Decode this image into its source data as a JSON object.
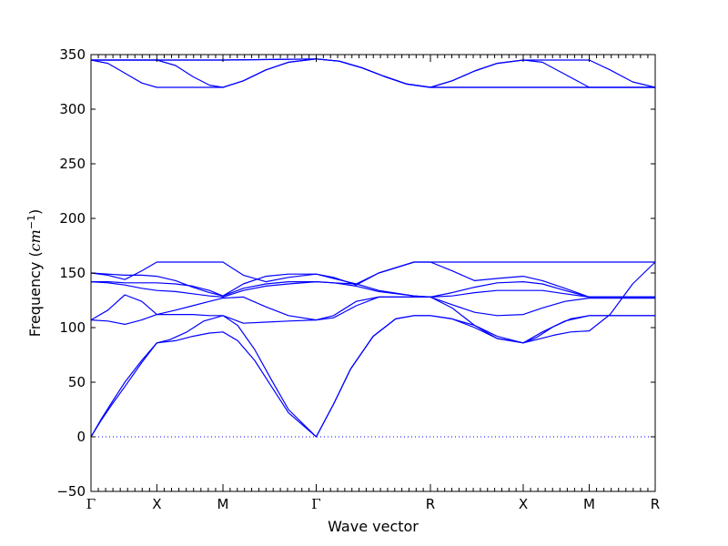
{
  "chart_data": {
    "type": "line",
    "title": "",
    "xlabel": "Wave vector",
    "ylabel_prefix": "Frequency (",
    "ylabel_unit": "cm",
    "ylabel_exp": "−1",
    "ylabel_suffix": ")",
    "ylim": [
      -50,
      350
    ],
    "yticks": [
      -50,
      0,
      50,
      100,
      150,
      200,
      250,
      300,
      350
    ],
    "ytick_labels": [
      "−50",
      "0",
      "50",
      "100",
      "150",
      "200",
      "250",
      "300",
      "350"
    ],
    "xlim": [
      0,
      1
    ],
    "kpoints": [
      {
        "label": "Γ",
        "x": 0.0
      },
      {
        "label": "X",
        "x": 0.1167
      },
      {
        "label": "M",
        "x": 0.2339
      },
      {
        "label": "Γ",
        "x": 0.3992
      },
      {
        "label": "R",
        "x": 0.6016
      },
      {
        "label": "X",
        "x": 0.7661
      },
      {
        "label": "M",
        "x": 0.8831
      },
      {
        "label": "R",
        "x": 1.0
      }
    ],
    "line_color": "#0000ff",
    "zero_line": {
      "y": 0,
      "style": "dotted",
      "color": "#0000ff"
    },
    "grid": false,
    "legend": "none",
    "series": [
      {
        "x": [
          0,
          0.0167,
          0.035,
          0.06,
          0.09,
          0.1167,
          0.14,
          0.17,
          0.2,
          0.2339,
          0.26,
          0.29,
          0.32,
          0.35,
          0.3992,
          0.43,
          0.46,
          0.5,
          0.54,
          0.5726,
          0.6016,
          0.64,
          0.68,
          0.72,
          0.7661,
          0.79,
          0.82,
          0.85,
          0.8831,
          0.92,
          0.96,
          1.0
        ],
        "y": [
          0,
          15,
          30,
          50,
          70,
          86,
          89,
          96,
          106,
          111,
          102,
          80,
          52,
          25,
          0,
          30,
          62,
          92,
          108,
          111,
          111,
          108,
          102,
          92,
          86,
          91,
          101,
          108,
          111,
          111,
          111,
          111
        ]
      },
      {
        "x": [
          0,
          0.0167,
          0.035,
          0.06,
          0.09,
          0.1167,
          0.15,
          0.18,
          0.21,
          0.2339,
          0.26,
          0.29,
          0.32,
          0.35,
          0.3992,
          0.43,
          0.46,
          0.5,
          0.54,
          0.5726,
          0.6016,
          0.64,
          0.68,
          0.72,
          0.7661,
          0.79,
          0.82,
          0.85,
          0.8831,
          0.92,
          0.96,
          1.0
        ],
        "y": [
          0,
          14,
          28,
          46,
          68,
          86,
          88,
          92,
          95,
          96,
          88,
          70,
          46,
          22,
          0,
          30,
          62,
          92,
          108,
          111,
          111,
          108,
          100,
          90,
          86,
          89,
          93,
          96,
          97,
          112,
          140,
          160
        ]
      },
      {
        "x": [
          0,
          0.03,
          0.06,
          0.09,
          0.1167,
          0.15,
          0.18,
          0.21,
          0.2339,
          0.27,
          0.31,
          0.35,
          0.3992,
          0.43,
          0.47,
          0.51,
          0.5726,
          0.6016,
          0.64,
          0.68,
          0.72,
          0.7661,
          0.8,
          0.84,
          0.8831,
          0.93,
          0.97,
          1.0
        ],
        "y": [
          107,
          106,
          103,
          107,
          112,
          112,
          112,
          111,
          111,
          104,
          105,
          106,
          107,
          109,
          120,
          128,
          128,
          128,
          118,
          102,
          90,
          86,
          96,
          106,
          111,
          111,
          111,
          111
        ]
      },
      {
        "x": [
          0,
          0.03,
          0.06,
          0.09,
          0.1167,
          0.15,
          0.18,
          0.21,
          0.2339,
          0.27,
          0.31,
          0.35,
          0.3992,
          0.43,
          0.47,
          0.51,
          0.5726,
          0.6016,
          0.64,
          0.68,
          0.72,
          0.7661,
          0.8,
          0.84,
          0.8831,
          0.93,
          0.97,
          1.0
        ],
        "y": [
          107,
          116,
          130,
          124,
          112,
          116,
          120,
          124,
          127,
          128,
          119,
          111,
          107,
          111,
          124,
          128,
          128,
          128,
          121,
          114,
          111,
          112,
          118,
          124,
          127,
          127,
          127,
          127
        ]
      },
      {
        "x": [
          0,
          0.03,
          0.06,
          0.09,
          0.1167,
          0.15,
          0.18,
          0.21,
          0.2339,
          0.27,
          0.31,
          0.35,
          0.3992,
          0.43,
          0.47,
          0.51,
          0.5726,
          0.6016,
          0.64,
          0.68,
          0.72,
          0.7661,
          0.8,
          0.84,
          0.8831,
          0.93,
          0.97,
          1.0
        ],
        "y": [
          142,
          141,
          139,
          136,
          134,
          133,
          131,
          129,
          128,
          134,
          138,
          140,
          142,
          141,
          138,
          133,
          129,
          128,
          129,
          132,
          134,
          134,
          134,
          131,
          128,
          128,
          128,
          128
        ]
      },
      {
        "x": [
          0,
          0.03,
          0.06,
          0.09,
          0.1167,
          0.15,
          0.18,
          0.21,
          0.2339,
          0.27,
          0.31,
          0.35,
          0.3992,
          0.43,
          0.47,
          0.51,
          0.5726,
          0.6016,
          0.64,
          0.68,
          0.72,
          0.7661,
          0.8,
          0.84,
          0.8831,
          0.93,
          0.97,
          1.0
        ],
        "y": [
          142,
          142,
          141,
          141,
          141,
          140,
          138,
          134,
          129,
          136,
          140,
          142,
          142,
          141,
          140,
          134,
          129,
          128,
          132,
          137,
          141,
          142,
          140,
          134,
          128,
          128,
          128,
          128
        ]
      },
      {
        "x": [
          0,
          0.03,
          0.06,
          0.09,
          0.1167,
          0.15,
          0.18,
          0.21,
          0.2339,
          0.27,
          0.31,
          0.35,
          0.3992,
          0.43,
          0.47,
          0.51,
          0.5726,
          0.6016,
          0.64,
          0.68,
          0.72,
          0.7661,
          0.8,
          0.84,
          0.8831,
          0.93,
          0.97,
          1.0
        ],
        "y": [
          150,
          148,
          144,
          152,
          160,
          160,
          160,
          160,
          160,
          148,
          142,
          146,
          149,
          146,
          139,
          150,
          160,
          160,
          152,
          143,
          145,
          147,
          143,
          136,
          128,
          128,
          128,
          128
        ]
      },
      {
        "x": [
          0,
          0.03,
          0.06,
          0.09,
          0.1167,
          0.15,
          0.18,
          0.21,
          0.2339,
          0.27,
          0.31,
          0.35,
          0.3992,
          0.43,
          0.47,
          0.51,
          0.5726,
          0.6016,
          0.64,
          0.68,
          0.72,
          0.7661,
          0.8,
          0.84,
          0.8831,
          0.93,
          0.97,
          1.0
        ],
        "y": [
          150,
          149,
          148,
          148,
          147,
          143,
          137,
          132,
          129,
          140,
          147,
          149,
          149,
          145,
          140,
          150,
          160,
          160,
          160,
          160,
          160,
          160,
          160,
          160,
          160,
          160,
          160,
          160
        ]
      },
      {
        "x": [
          0,
          0.03,
          0.06,
          0.09,
          0.1167,
          0.15,
          0.18,
          0.21,
          0.2339,
          0.27,
          0.31,
          0.35,
          0.3992,
          0.44,
          0.48,
          0.52,
          0.56,
          0.6016,
          0.64,
          0.68,
          0.72,
          0.7661,
          0.8,
          0.84,
          0.8831,
          0.93,
          0.97,
          1.0
        ],
        "y": [
          345,
          345,
          345,
          345,
          345,
          340,
          330,
          322,
          320,
          326,
          336,
          343,
          346,
          344,
          338,
          330,
          323,
          320,
          326,
          335,
          342,
          345,
          343,
          332,
          320,
          320,
          320,
          320
        ]
      },
      {
        "x": [
          0,
          0.03,
          0.06,
          0.09,
          0.1167,
          0.15,
          0.18,
          0.21,
          0.2339,
          0.27,
          0.31,
          0.35,
          0.3992,
          0.44,
          0.48,
          0.52,
          0.56,
          0.6016,
          0.64,
          0.68,
          0.72,
          0.7661,
          0.8,
          0.84,
          0.8831,
          0.93,
          0.97,
          1.0
        ],
        "y": [
          345,
          342,
          333,
          324,
          320,
          320,
          320,
          320,
          320,
          326,
          336,
          343,
          346,
          344,
          338,
          330,
          323,
          320,
          320,
          320,
          320,
          320,
          320,
          320,
          320,
          320,
          320,
          320
        ]
      },
      {
        "x": [
          0,
          0.1167,
          0.2339,
          0.3992,
          0.44,
          0.48,
          0.52,
          0.56,
          0.6016,
          0.64,
          0.68,
          0.72,
          0.7661,
          0.8,
          0.84,
          0.8831,
          0.92,
          0.96,
          1.0
        ],
        "y": [
          345,
          345,
          345,
          346,
          344,
          338,
          330,
          323,
          320,
          326,
          335,
          342,
          345,
          345,
          345,
          345,
          336,
          325,
          320
        ]
      },
      {
        "x": [
          0,
          0.1167,
          0.2339,
          0.3992,
          0.44,
          0.48,
          0.52,
          0.56,
          0.6016,
          0.7661,
          0.8831,
          1.0
        ],
        "y": [
          345,
          345,
          345,
          346,
          344,
          338,
          330,
          323,
          320,
          320,
          320,
          320
        ]
      }
    ]
  }
}
